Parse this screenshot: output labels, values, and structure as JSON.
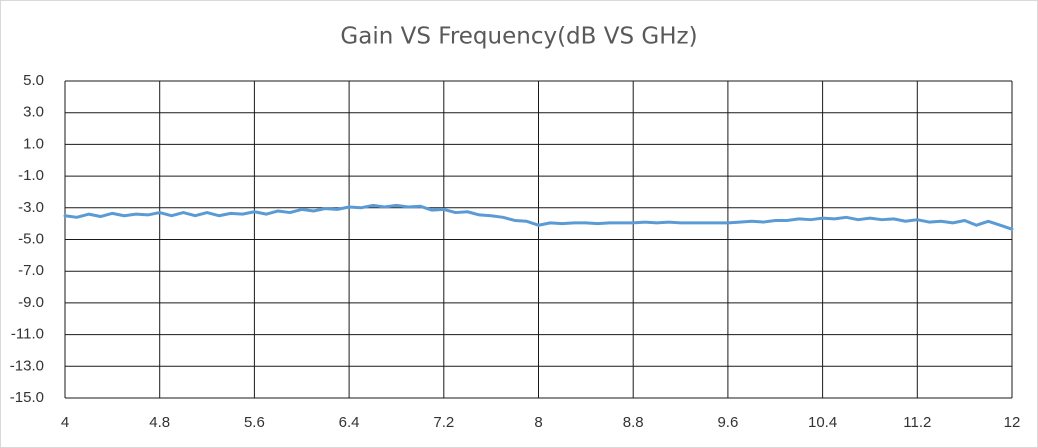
{
  "chart_data": {
    "type": "line",
    "title": "Gain VS Frequency(dB VS GHz)",
    "x": [
      4.0,
      4.1,
      4.2,
      4.3,
      4.4,
      4.5,
      4.6,
      4.7,
      4.8,
      4.9,
      5.0,
      5.1,
      5.2,
      5.3,
      5.4,
      5.5,
      5.6,
      5.7,
      5.8,
      5.9,
      6.0,
      6.1,
      6.2,
      6.3,
      6.4,
      6.5,
      6.6,
      6.7,
      6.8,
      6.9,
      7.0,
      7.1,
      7.2,
      7.3,
      7.4,
      7.5,
      7.6,
      7.7,
      7.8,
      7.9,
      8.0,
      8.1,
      8.2,
      8.3,
      8.4,
      8.5,
      8.6,
      8.7,
      8.8,
      8.9,
      9.0,
      9.1,
      9.2,
      9.3,
      9.4,
      9.5,
      9.6,
      9.7,
      9.8,
      9.9,
      10.0,
      10.1,
      10.2,
      10.3,
      10.4,
      10.5,
      10.6,
      10.7,
      10.8,
      10.9,
      11.0,
      11.1,
      11.2,
      11.3,
      11.4,
      11.5,
      11.6,
      11.7,
      11.8,
      11.9,
      12.0
    ],
    "values": [
      -3.5,
      -3.6,
      -3.4,
      -3.55,
      -3.35,
      -3.5,
      -3.4,
      -3.45,
      -3.3,
      -3.5,
      -3.3,
      -3.5,
      -3.3,
      -3.5,
      -3.35,
      -3.4,
      -3.25,
      -3.4,
      -3.2,
      -3.3,
      -3.1,
      -3.2,
      -3.05,
      -3.1,
      -2.95,
      -3.0,
      -2.85,
      -2.95,
      -2.85,
      -2.95,
      -2.9,
      -3.15,
      -3.1,
      -3.3,
      -3.25,
      -3.45,
      -3.5,
      -3.6,
      -3.8,
      -3.85,
      -4.1,
      -3.95,
      -4.0,
      -3.95,
      -3.95,
      -4.0,
      -3.95,
      -3.95,
      -3.95,
      -3.9,
      -3.95,
      -3.9,
      -3.95,
      -3.95,
      -3.95,
      -3.95,
      -3.95,
      -3.9,
      -3.85,
      -3.9,
      -3.8,
      -3.8,
      -3.7,
      -3.75,
      -3.65,
      -3.7,
      -3.6,
      -3.75,
      -3.65,
      -3.75,
      -3.7,
      -3.85,
      -3.75,
      -3.9,
      -3.85,
      -3.95,
      -3.8,
      -4.1,
      -3.85,
      -4.1,
      -4.35
    ],
    "color": "#5b9bd5",
    "xlim": [
      4,
      12
    ],
    "xticks": [
      4,
      4.8,
      5.6,
      6.4,
      7.2,
      8,
      8.8,
      9.6,
      10.4,
      11.2,
      12
    ],
    "ylim": [
      -15,
      5
    ],
    "yticks": [
      {
        "value": 5,
        "label": "5.0"
      },
      {
        "value": 3,
        "label": "3.0"
      },
      {
        "value": 1,
        "label": "1.0"
      },
      {
        "value": -1,
        "label": "-1.0"
      },
      {
        "value": -3,
        "label": "-3.0"
      },
      {
        "value": -5,
        "label": "-5.0"
      },
      {
        "value": -7,
        "label": "-7.0"
      },
      {
        "value": -9,
        "label": "-9.0"
      },
      {
        "value": -11,
        "label": "-11.0"
      },
      {
        "value": -13,
        "label": "-13.0"
      },
      {
        "value": -15,
        "label": "-15.0"
      }
    ],
    "grid": true
  }
}
